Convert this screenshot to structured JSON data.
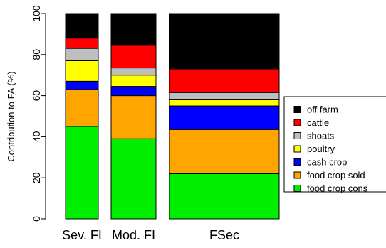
{
  "chart_data": {
    "type": "bar",
    "stacked": true,
    "title": "",
    "xlabel": "",
    "ylabel": "Contribution to FA (%)",
    "ylim": [
      0,
      100
    ],
    "yticks": [
      "0",
      "20",
      "40",
      "60",
      "80",
      "100"
    ],
    "grid": false,
    "legend_position": "right",
    "categories": [
      "Sev. FI",
      "Mod. FI",
      "FSec"
    ],
    "series": [
      {
        "name": "food crop cons",
        "color": "#00ee00",
        "values": [
          45,
          39,
          22
        ]
      },
      {
        "name": "food crop sold",
        "color": "#ffa500",
        "values": [
          18,
          21,
          21.5
        ]
      },
      {
        "name": "cash crop",
        "color": "#0000ff",
        "values": [
          4,
          4.5,
          11.5
        ]
      },
      {
        "name": "poultry",
        "color": "#ffff00",
        "values": [
          10,
          5.5,
          3
        ]
      },
      {
        "name": "shoats",
        "color": "#bebebe",
        "values": [
          6,
          3.5,
          3.5
        ]
      },
      {
        "name": "cattle",
        "color": "#ff0000",
        "values": [
          5,
          11,
          11.5
        ]
      },
      {
        "name": "off farm",
        "color": "#000000",
        "values": [
          12,
          15.5,
          27
        ]
      }
    ],
    "legend_order": [
      "off farm",
      "cattle",
      "shoats",
      "poultry",
      "cash crop",
      "food crop sold",
      "food crop cons"
    ]
  }
}
